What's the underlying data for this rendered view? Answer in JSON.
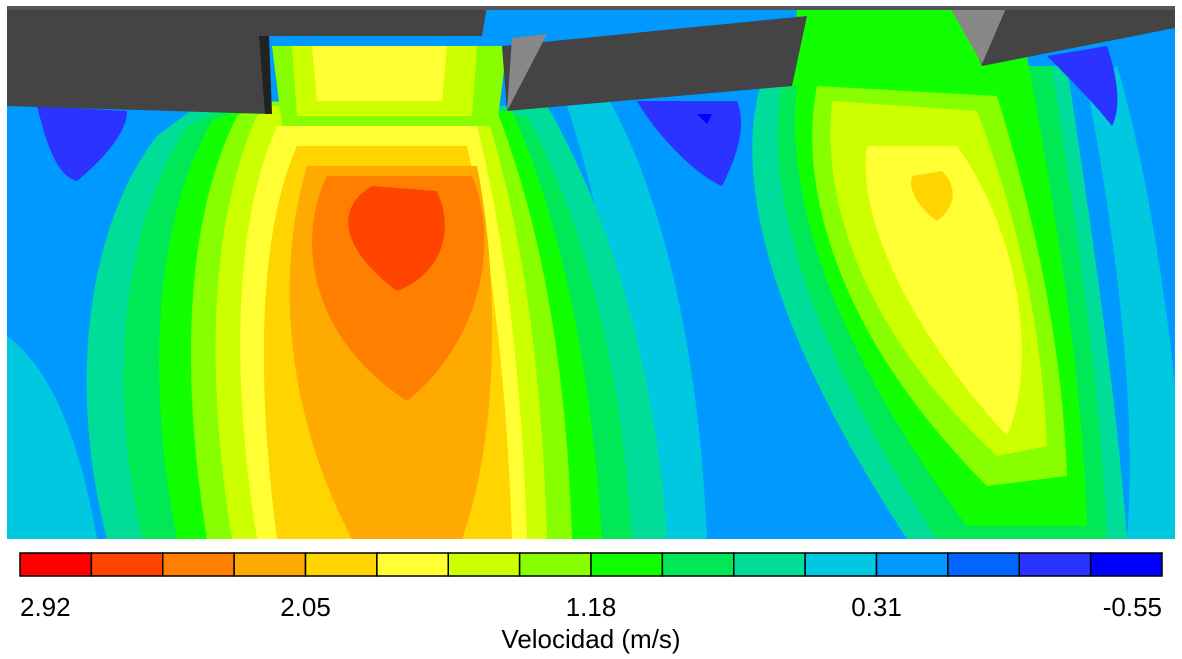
{
  "chart_data": {
    "type": "heatmap",
    "title": "",
    "colorbar": {
      "label": "Velocidad (m/s)",
      "max": 2.92,
      "min": -0.55,
      "tick_labels": [
        "2.92",
        "2.05",
        "1.18",
        "0.31",
        "-0.55"
      ],
      "colors": [
        "#ff0000",
        "#ff4400",
        "#ff7f00",
        "#ffaa00",
        "#ffd400",
        "#ffff33",
        "#ccff00",
        "#88ff00",
        "#11ff00",
        "#00e855",
        "#00dd99",
        "#00c8e0",
        "#0099ff",
        "#0066ff",
        "#2a33ff",
        "#0000ff"
      ]
    },
    "wall_color": "#444444",
    "regions": [
      {
        "name": "jet-left",
        "peak_velocity": 2.92
      },
      {
        "name": "jet-right",
        "peak_velocity": 2.05
      },
      {
        "name": "low-velocity-pockets",
        "min_velocity": -0.55
      }
    ]
  }
}
